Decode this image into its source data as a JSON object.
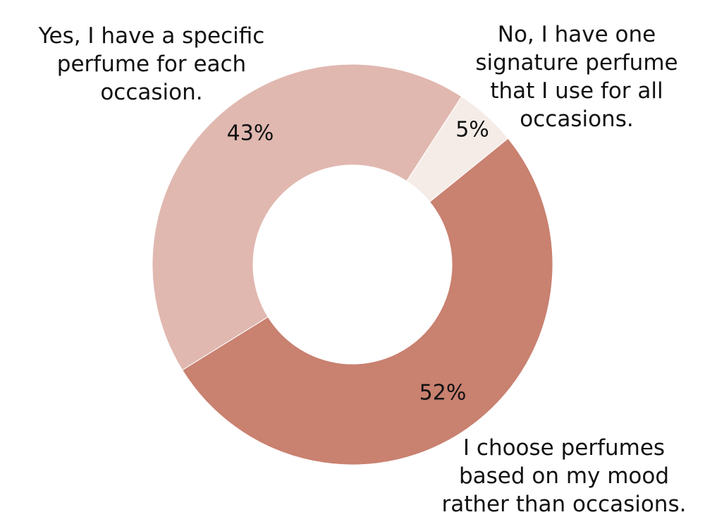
{
  "chart_data": {
    "type": "donut",
    "categories": [
      "No, I have one signature perfume that I use for all occasions.",
      "I choose perfumes based on my mood rather than occasions.",
      "Yes, I have a specific perfume for each occasion."
    ],
    "values": [
      5,
      52,
      43
    ],
    "value_labels": [
      "5%",
      "52%",
      "43%"
    ],
    "colors": [
      "#f5ece8",
      "#c98170",
      "#e0b8b0"
    ]
  }
}
